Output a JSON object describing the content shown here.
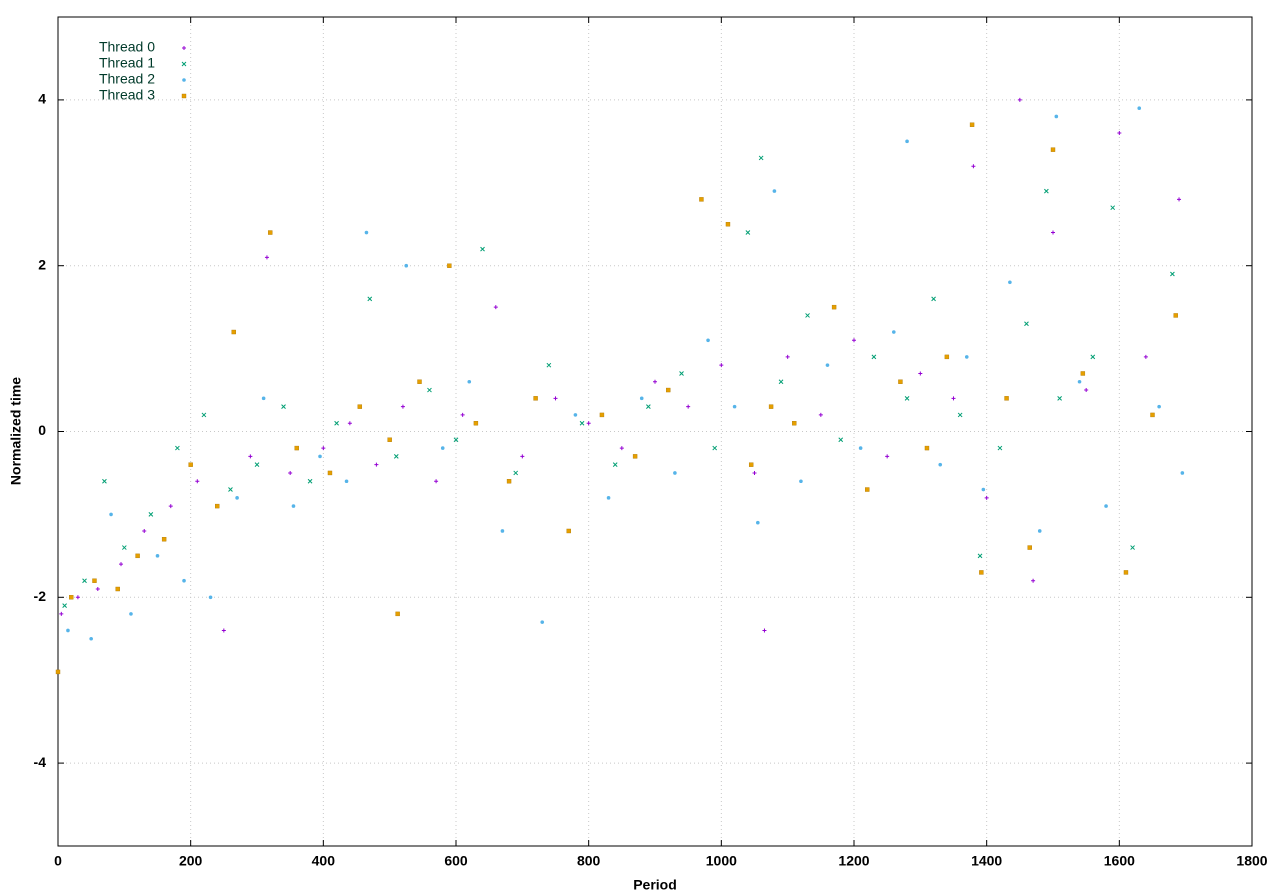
{
  "chart_data": {
    "type": "scatter",
    "xlabel": "Period",
    "ylabel": "Normalized time",
    "xlim": [
      0,
      1800
    ],
    "ylim": [
      -5,
      5
    ],
    "xticks": [
      0,
      200,
      400,
      600,
      800,
      1000,
      1200,
      1400,
      1600,
      1800
    ],
    "yticks": [
      -4,
      -2,
      0,
      2,
      4
    ],
    "grid": true,
    "legend": "top-left",
    "series": [
      {
        "name": "Thread 0",
        "color": "#9400d3",
        "marker": "plus",
        "x": [
          5,
          30,
          60,
          95,
          130,
          170,
          210,
          250,
          290,
          315,
          350,
          400,
          440,
          480,
          520,
          570,
          610,
          660,
          700,
          750,
          800,
          850,
          900,
          950,
          1000,
          1050,
          1065,
          1100,
          1150,
          1200,
          1250,
          1300,
          1350,
          1380,
          1400,
          1450,
          1470,
          1500,
          1550,
          1600,
          1640,
          1690
        ],
        "values": [
          -2.2,
          -2.0,
          -1.9,
          -1.6,
          -1.2,
          -0.9,
          -0.6,
          -2.4,
          -0.3,
          2.1,
          -0.5,
          -0.2,
          0.1,
          -0.4,
          0.3,
          -0.6,
          0.2,
          1.5,
          -0.3,
          0.4,
          0.1,
          -0.2,
          0.6,
          0.3,
          0.8,
          -0.5,
          -2.4,
          0.9,
          0.2,
          1.1,
          -0.3,
          0.7,
          0.4,
          3.2,
          -0.8,
          4.0,
          -1.8,
          2.4,
          0.5,
          3.6,
          0.9,
          2.8
        ]
      },
      {
        "name": "Thread 1",
        "color": "#009e73",
        "marker": "cross",
        "x": [
          10,
          40,
          70,
          100,
          140,
          180,
          220,
          260,
          300,
          340,
          380,
          420,
          470,
          510,
          560,
          600,
          640,
          690,
          740,
          790,
          840,
          890,
          940,
          990,
          1040,
          1060,
          1090,
          1130,
          1180,
          1230,
          1280,
          1320,
          1360,
          1390,
          1420,
          1460,
          1490,
          1510,
          1560,
          1590,
          1620,
          1680
        ],
        "values": [
          -2.1,
          -1.8,
          -0.6,
          -1.4,
          -1.0,
          -0.2,
          0.2,
          -0.7,
          -0.4,
          0.3,
          -0.6,
          0.1,
          1.6,
          -0.3,
          0.5,
          -0.1,
          2.2,
          -0.5,
          0.8,
          0.1,
          -0.4,
          0.3,
          0.7,
          -0.2,
          2.4,
          3.3,
          0.6,
          1.4,
          -0.1,
          0.9,
          0.4,
          1.6,
          0.2,
          -1.5,
          -0.2,
          1.3,
          2.9,
          0.4,
          0.9,
          2.7,
          -1.4,
          1.9
        ]
      },
      {
        "name": "Thread 2",
        "color": "#56b4e9",
        "marker": "circle",
        "x": [
          15,
          50,
          80,
          110,
          150,
          190,
          230,
          270,
          310,
          355,
          395,
          435,
          465,
          525,
          580,
          620,
          670,
          730,
          780,
          830,
          880,
          930,
          980,
          1020,
          1055,
          1080,
          1120,
          1160,
          1210,
          1260,
          1280,
          1330,
          1370,
          1395,
          1435,
          1480,
          1505,
          1540,
          1580,
          1630,
          1660,
          1695
        ],
        "values": [
          -2.4,
          -2.5,
          -1.0,
          -2.2,
          -1.5,
          -1.8,
          -2.0,
          -0.8,
          0.4,
          -0.9,
          -0.3,
          -0.6,
          2.4,
          2.0,
          -0.2,
          0.6,
          -1.2,
          -2.3,
          0.2,
          -0.8,
          0.4,
          -0.5,
          1.1,
          0.3,
          -1.1,
          2.9,
          -0.6,
          0.8,
          -0.2,
          1.2,
          3.5,
          -0.4,
          0.9,
          -0.7,
          1.8,
          -1.2,
          3.8,
          0.6,
          -0.9,
          3.9,
          0.3,
          -0.5
        ]
      },
      {
        "name": "Thread 3",
        "color": "#e69f00",
        "marker": "square",
        "x": [
          0,
          20,
          55,
          90,
          120,
          160,
          200,
          240,
          265,
          320,
          360,
          410,
          455,
          500,
          512,
          545,
          590,
          630,
          680,
          720,
          770,
          820,
          870,
          920,
          970,
          1010,
          1045,
          1075,
          1110,
          1170,
          1220,
          1270,
          1310,
          1340,
          1378,
          1392,
          1430,
          1465,
          1500,
          1545,
          1610,
          1650,
          1685
        ],
        "values": [
          -2.9,
          -2.0,
          -1.8,
          -1.9,
          -1.5,
          -1.3,
          -0.4,
          -0.9,
          1.2,
          2.4,
          -0.2,
          -0.5,
          0.3,
          -0.1,
          -2.2,
          0.6,
          2.0,
          0.1,
          -0.6,
          0.4,
          -1.2,
          0.2,
          -0.3,
          0.5,
          2.8,
          2.5,
          -0.4,
          0.3,
          0.1,
          1.5,
          -0.7,
          0.6,
          -0.2,
          0.9,
          3.7,
          -1.7,
          0.4,
          -1.4,
          3.4,
          0.7,
          -1.7,
          0.2,
          1.4
        ]
      }
    ]
  }
}
